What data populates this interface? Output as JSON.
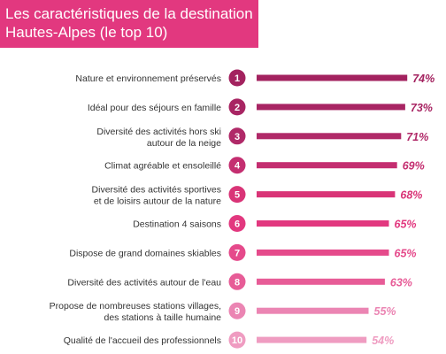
{
  "header": {
    "title_line1": "Les caractéristiques de la destination",
    "title_line2": "Hautes-Alpes (le top 10)"
  },
  "chart_data": {
    "type": "bar",
    "orientation": "horizontal",
    "title": "Les caractéristiques de la destination Hautes-Alpes (le top 10)",
    "categories": [
      [
        "Nature et environnement préservés"
      ],
      [
        "Idéal pour des séjours en famille"
      ],
      [
        "Diversité des activités hors ski",
        "autour de la neige"
      ],
      [
        "Climat agréable et ensoleillé"
      ],
      [
        "Diversité des activités sportives",
        "et de loisirs autour de la nature"
      ],
      [
        "Destination 4 saisons"
      ],
      [
        "Dispose de grand domaines skiables"
      ],
      [
        "Diversité des activités autour de l'eau"
      ],
      [
        "Propose de nombreuses stations villages,",
        "des stations à taille humaine"
      ],
      [
        "Qualité de l'accueil des professionnels"
      ]
    ],
    "ranks": [
      "1",
      "2",
      "3",
      "4",
      "5",
      "6",
      "7",
      "8",
      "9",
      "10"
    ],
    "values": [
      74,
      73,
      71,
      69,
      68,
      65,
      65,
      63,
      55,
      54
    ],
    "value_labels": [
      "74%",
      "73%",
      "71%",
      "69%",
      "68%",
      "65%",
      "65%",
      "63%",
      "55%",
      "54%"
    ],
    "colors": [
      "#a3225f",
      "#a82563",
      "#b02968",
      "#c42e70",
      "#d93477",
      "#e2387f",
      "#e54a8b",
      "#e75c97",
      "#eb85b3",
      "#ef9cc1"
    ]
  }
}
